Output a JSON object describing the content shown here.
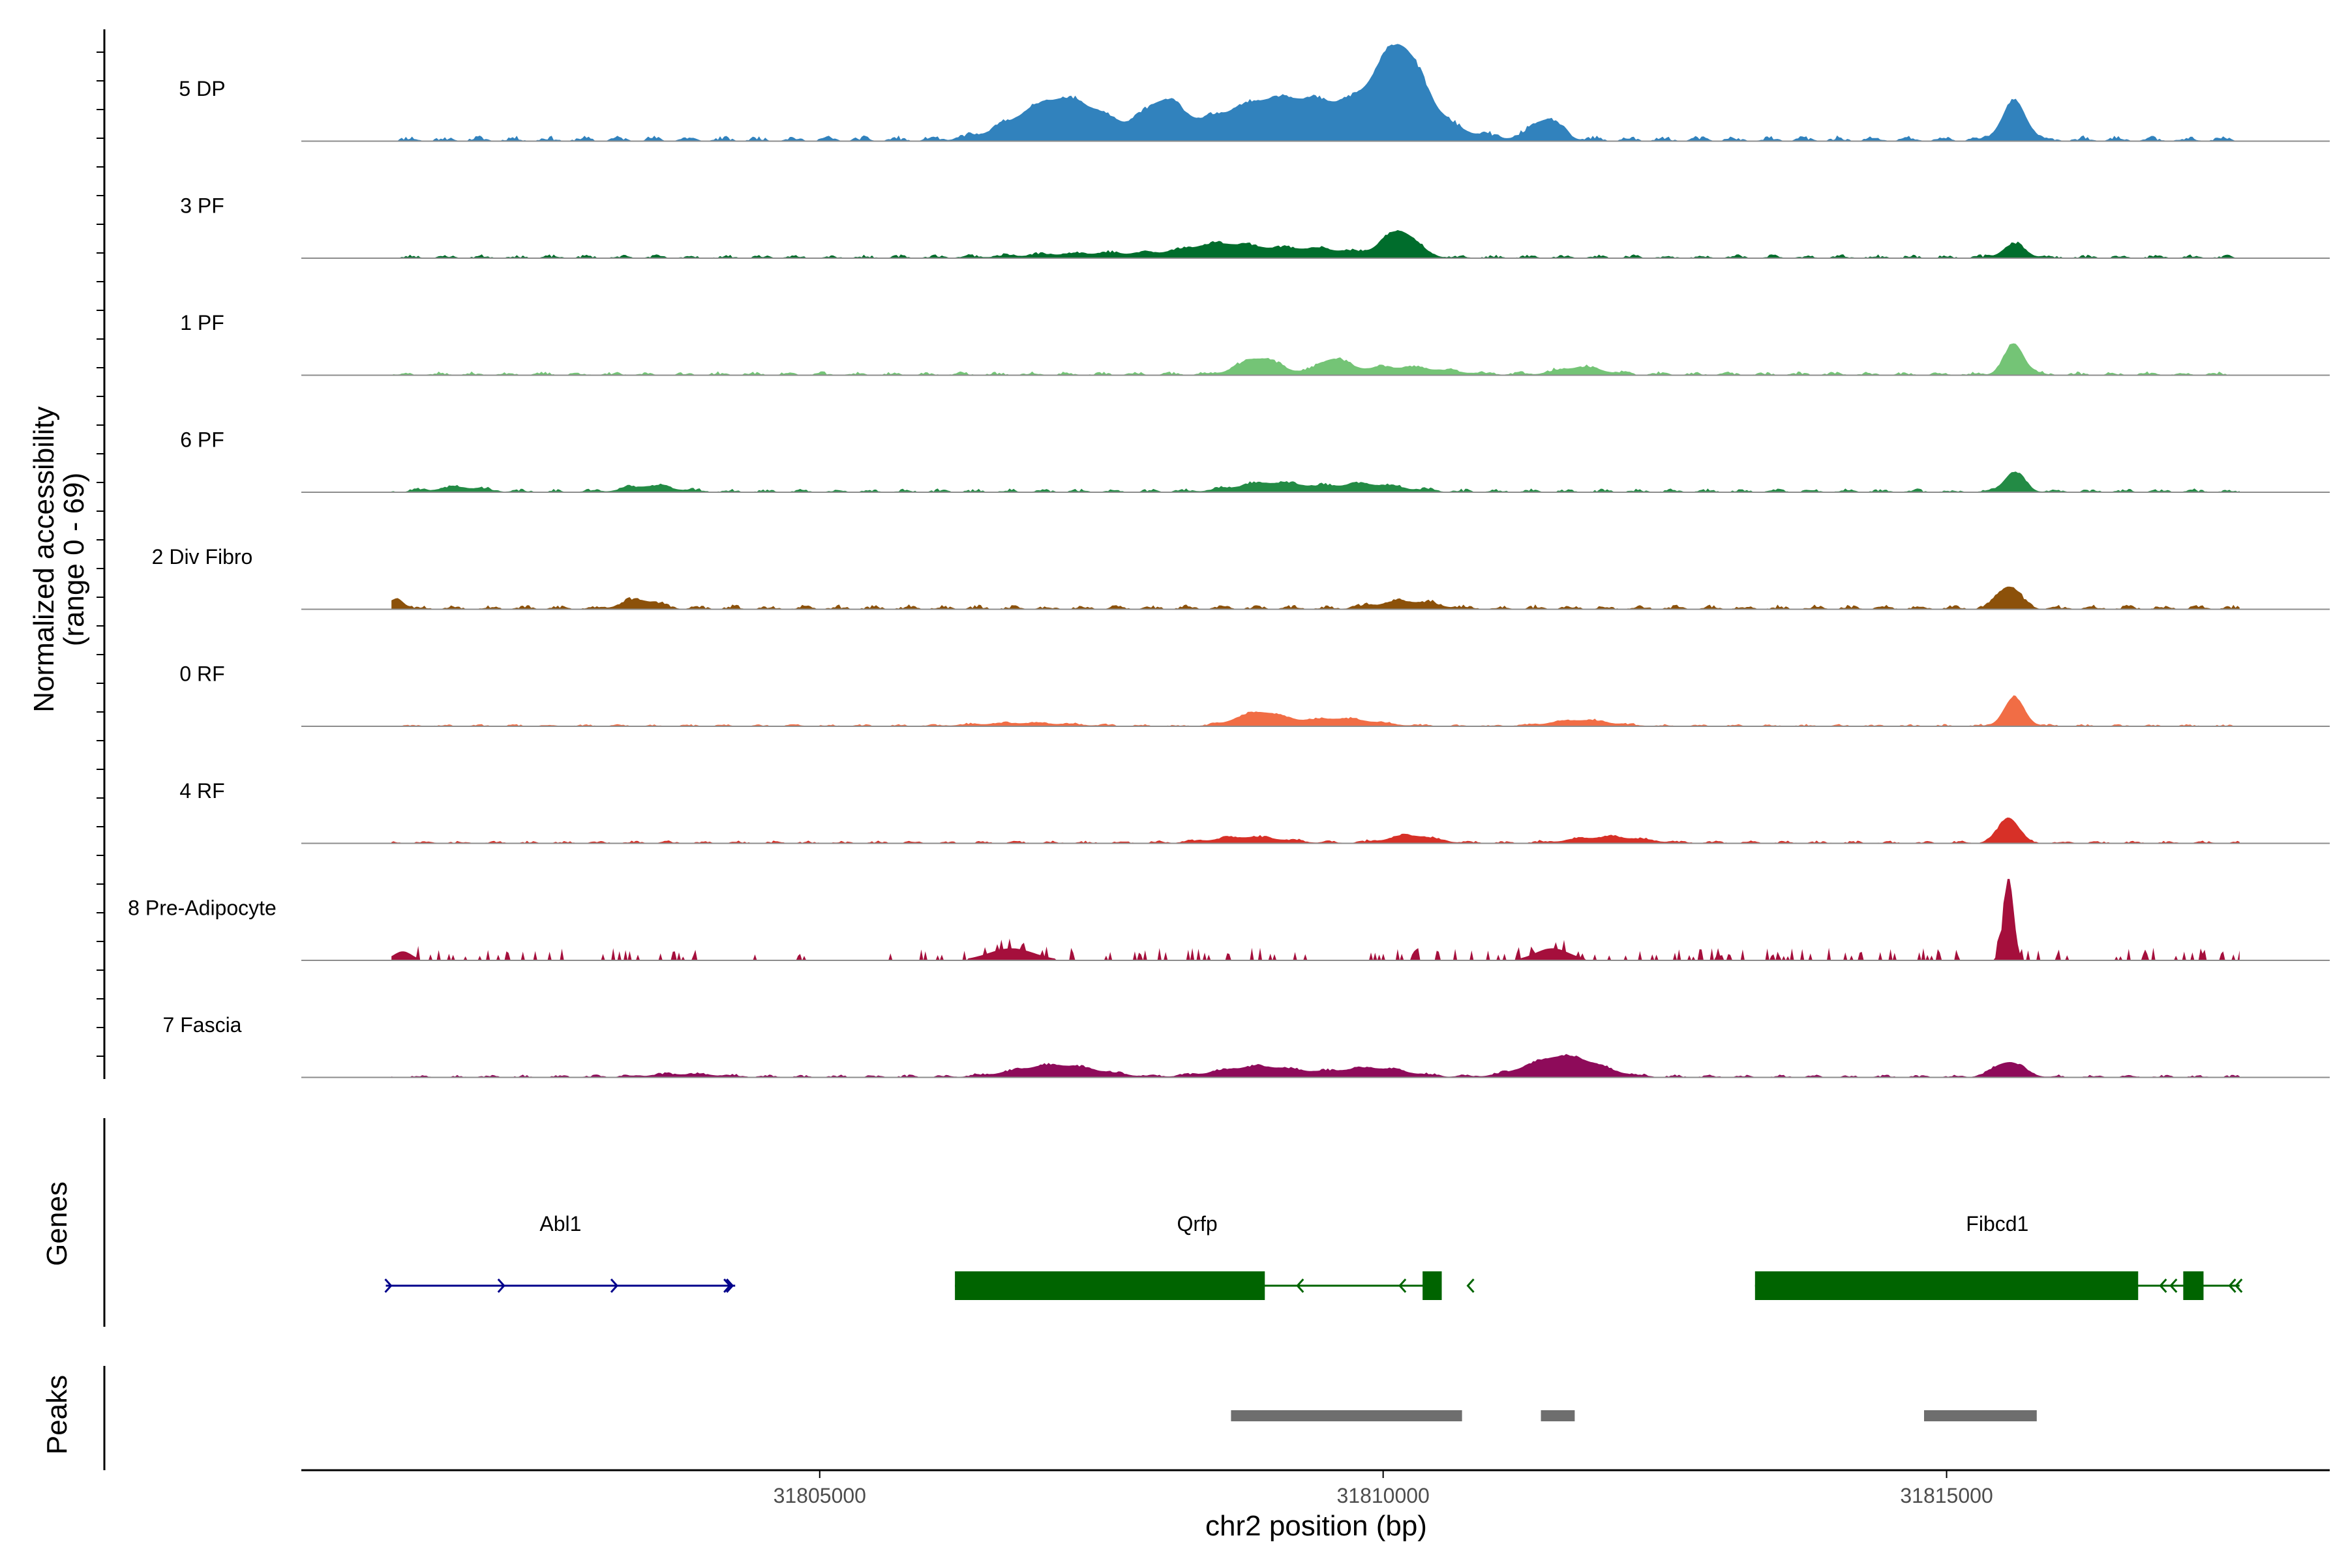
{
  "chart_data": {
    "type": "area",
    "title": "",
    "xlabel": "chr2 position (bp)",
    "ylabel_line1": "Normalized accessibility",
    "ylabel_line2": "(range 0 - 69)",
    "yrange": [
      0,
      69
    ],
    "xlim": [
      31800400,
      31818400
    ],
    "x_ticks": [
      31805000,
      31810000,
      31815000
    ],
    "x_tick_labels": [
      "31805000",
      "31810000",
      "31815000"
    ],
    "genes_label": "Genes",
    "peaks_label": "Peaks",
    "region_start": 31801200,
    "region_end": 31817600,
    "tracks": [
      {
        "name": "5 DP",
        "color": "#3182bd",
        "peaks": [
          [
            31807150,
            28,
            380
          ],
          [
            31808050,
            22,
            170
          ],
          [
            31808850,
            20,
            420
          ],
          [
            31810150,
            45,
            200
          ],
          [
            31810000,
            18,
            500
          ],
          [
            31811450,
            14,
            130
          ],
          [
            31815600,
            25,
            110
          ],
          [
            31809350,
            10,
            400
          ]
        ],
        "base": 3,
        "noise": 3,
        "seed": 11
      },
      {
        "name": "3 PF",
        "color": "#006d2c",
        "peaks": [
          [
            31808550,
            8,
            300
          ],
          [
            31809350,
            6,
            400
          ],
          [
            31810150,
            17,
            150
          ],
          [
            31815600,
            9,
            100
          ],
          [
            31807500,
            3,
            600
          ]
        ],
        "base": 2,
        "noise": 2,
        "seed": 23
      },
      {
        "name": "1 PF",
        "color": "#74c476",
        "peaks": [
          [
            31808900,
            11,
            180
          ],
          [
            31809550,
            9,
            130
          ],
          [
            31810150,
            5,
            400
          ],
          [
            31811750,
            5,
            200
          ],
          [
            31815600,
            20,
            90
          ]
        ],
        "base": 2,
        "noise": 2,
        "seed": 37
      },
      {
        "name": "6 PF",
        "color": "#238b45",
        "peaks": [
          [
            31809000,
            6,
            300
          ],
          [
            31809850,
            5,
            300
          ],
          [
            31815600,
            13,
            90
          ],
          [
            31803500,
            4,
            200
          ],
          [
            31801800,
            3,
            200
          ]
        ],
        "base": 2,
        "noise": 2,
        "seed": 41
      },
      {
        "name": "2 Div Fibro",
        "color": "#8c510a",
        "peaks": [
          [
            31815550,
            15,
            100
          ],
          [
            31801250,
            7,
            60
          ],
          [
            31803400,
            6,
            150
          ],
          [
            31810200,
            5,
            250
          ]
        ],
        "base": 2.5,
        "noise": 2,
        "seed": 53
      },
      {
        "name": "0 RF",
        "color": "#f16d45",
        "peaks": [
          [
            31808900,
            9,
            200
          ],
          [
            31809600,
            5,
            300
          ],
          [
            31815600,
            19,
            90
          ],
          [
            31811750,
            4,
            250
          ],
          [
            31806800,
            2,
            400
          ]
        ],
        "base": 1.2,
        "noise": 1.2,
        "seed": 61
      },
      {
        "name": "4 RF",
        "color": "#d73027",
        "peaks": [
          [
            31815550,
            17,
            90
          ],
          [
            31808800,
            4,
            300
          ],
          [
            31810250,
            5,
            200
          ],
          [
            31812000,
            4,
            300
          ]
        ],
        "base": 1.5,
        "noise": 1.5,
        "seed": 71
      },
      {
        "name": "8 Pre-Adipocyte",
        "color": "#a50f3c",
        "peaks": [
          [
            31815550,
            55,
            45
          ],
          [
            31806700,
            8,
            200
          ],
          [
            31811500,
            8,
            150
          ],
          [
            31801300,
            6,
            80
          ]
        ],
        "base": 0,
        "noise": 6,
        "seed": 83,
        "sparse": true
      },
      {
        "name": "7 Fascia",
        "color": "#8e0b5a",
        "peaks": [
          [
            31811600,
            14,
            300
          ],
          [
            31807100,
            8,
            350
          ],
          [
            31808900,
            7,
            350
          ],
          [
            31809900,
            6,
            300
          ],
          [
            31815550,
            10,
            130
          ],
          [
            31803800,
            2,
            300
          ]
        ],
        "base": 1.5,
        "noise": 2,
        "seed": 97
      }
    ],
    "genes": [
      {
        "name": "Abl1",
        "strand": "+",
        "start": 31801150,
        "end": 31804250,
        "color": "#00008b",
        "exons": []
      },
      {
        "name": "Qrfp",
        "strand": "-",
        "start": 31806200,
        "end": 31810500,
        "color": "#006400",
        "exons": [
          [
            31806200,
            31808950
          ],
          [
            31810350,
            31810520
          ]
        ]
      },
      {
        "name": "Fibcd1",
        "strand": "-",
        "start": 31813300,
        "end": 31817600,
        "color": "#006400",
        "exons": [
          [
            31813300,
            31816700
          ],
          [
            31817100,
            31817280
          ]
        ]
      }
    ],
    "peak_regions": [
      [
        31808650,
        31810700
      ],
      [
        31811400,
        31811700
      ],
      [
        31814800,
        31815800
      ]
    ]
  }
}
